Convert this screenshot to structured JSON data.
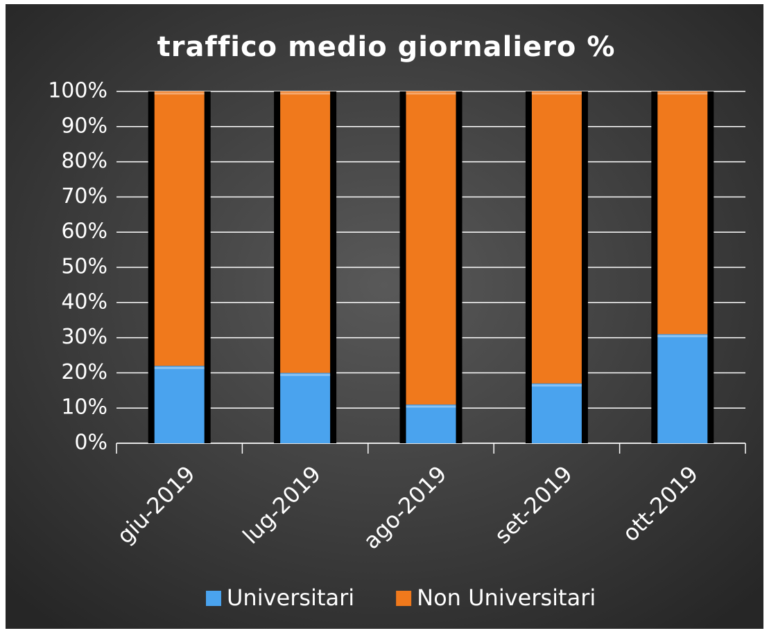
{
  "chart_data": {
    "type": "bar",
    "stacked": true,
    "title": "traffico medio giornaliero %",
    "categories": [
      "giu-2019",
      "lug-2019",
      "ago-2019",
      "set-2019",
      "ott-2019"
    ],
    "series": [
      {
        "name": "Universitari",
        "color": "#4aa3ee",
        "values": [
          22,
          20,
          11,
          17,
          31
        ]
      },
      {
        "name": "Non Universitari",
        "color": "#f0791c",
        "values": [
          78,
          80,
          89,
          83,
          69
        ]
      }
    ],
    "ylim": [
      0,
      100
    ],
    "yticks": [
      {
        "value": 0,
        "label": "0%"
      },
      {
        "value": 10,
        "label": "10%"
      },
      {
        "value": 20,
        "label": "20%"
      },
      {
        "value": 30,
        "label": "30%"
      },
      {
        "value": 40,
        "label": "40%"
      },
      {
        "value": 50,
        "label": "50%"
      },
      {
        "value": 60,
        "label": "60%"
      },
      {
        "value": 70,
        "label": "70%"
      },
      {
        "value": 80,
        "label": "80%"
      },
      {
        "value": 90,
        "label": "90%"
      },
      {
        "value": 100,
        "label": "100%"
      }
    ],
    "grid": true,
    "legend": "bottom"
  }
}
